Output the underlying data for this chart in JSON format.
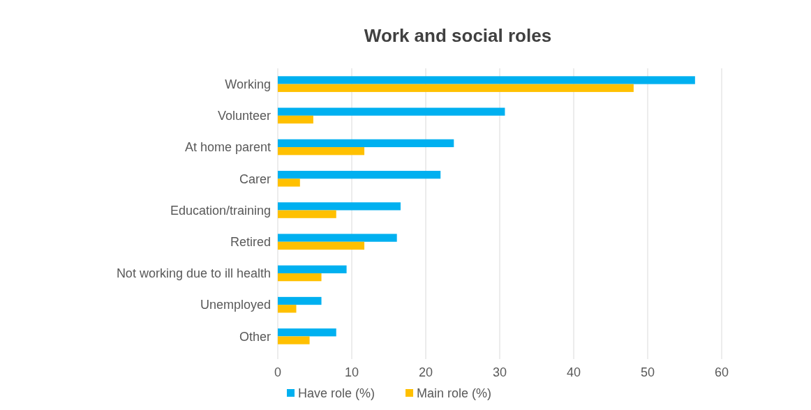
{
  "chart_data": {
    "type": "bar",
    "orientation": "horizontal",
    "title": "Work and social roles",
    "categories": [
      "Working",
      "Volunteer",
      "At home parent",
      "Carer",
      "Education/training",
      "Retired",
      "Not working due to ill health",
      "Unemployed",
      "Other"
    ],
    "series": [
      {
        "name": "Have role (%)",
        "color": "#00b0f0",
        "values": [
          56.4,
          30.7,
          23.8,
          22.0,
          16.6,
          16.1,
          9.3,
          5.9,
          7.9
        ]
      },
      {
        "name": "Main role (%)",
        "color": "#ffc000",
        "values": [
          48.1,
          4.8,
          11.7,
          3.0,
          7.9,
          11.7,
          5.9,
          2.5,
          4.3
        ]
      }
    ],
    "xlim": [
      0,
      60
    ],
    "xticks": [
      0,
      10,
      20,
      30,
      40,
      50,
      60
    ],
    "grid": "x",
    "legend": "bottom"
  }
}
